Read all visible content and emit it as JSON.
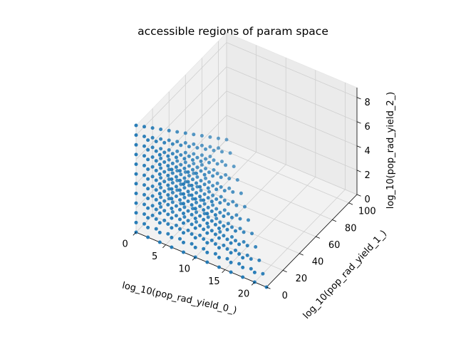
{
  "chart_data": {
    "type": "scatter",
    "projection": "3d",
    "title": "accessible regions of param space",
    "xlabel": "log_10(pop_rad_yield_0_)",
    "ylabel": "log_10(pop_rad_yield_1_)",
    "zlabel": "log_10(pop_rad_yield_2_)",
    "xlim": [
      0,
      22
    ],
    "ylim": [
      0,
      110
    ],
    "zlim": [
      0,
      8.8
    ],
    "x_ticks": [
      "0",
      "5",
      "10",
      "15",
      "20"
    ],
    "y_ticks": [
      "0",
      "20",
      "40",
      "60",
      "80",
      "100"
    ],
    "z_ticks": [
      "0",
      "2",
      "4",
      "6",
      "8"
    ],
    "grid": true,
    "color": "#1f77b4",
    "points_description": "lattice of points filling the region x/22 + y/110 + z/8.8 <= 1",
    "grid_values": {
      "x": [
        0,
        2,
        4,
        6,
        8,
        10,
        12,
        14,
        16,
        18,
        20,
        22
      ],
      "y": [
        0,
        10,
        20,
        30,
        40,
        50,
        60,
        70,
        80,
        90,
        100,
        110
      ],
      "z": [
        0,
        0.8,
        1.6,
        2.4,
        3.2,
        4.0,
        4.8,
        5.6,
        6.4,
        7.2,
        8.0,
        8.8
      ],
      "constraint_sum_max": 1.0
    }
  }
}
